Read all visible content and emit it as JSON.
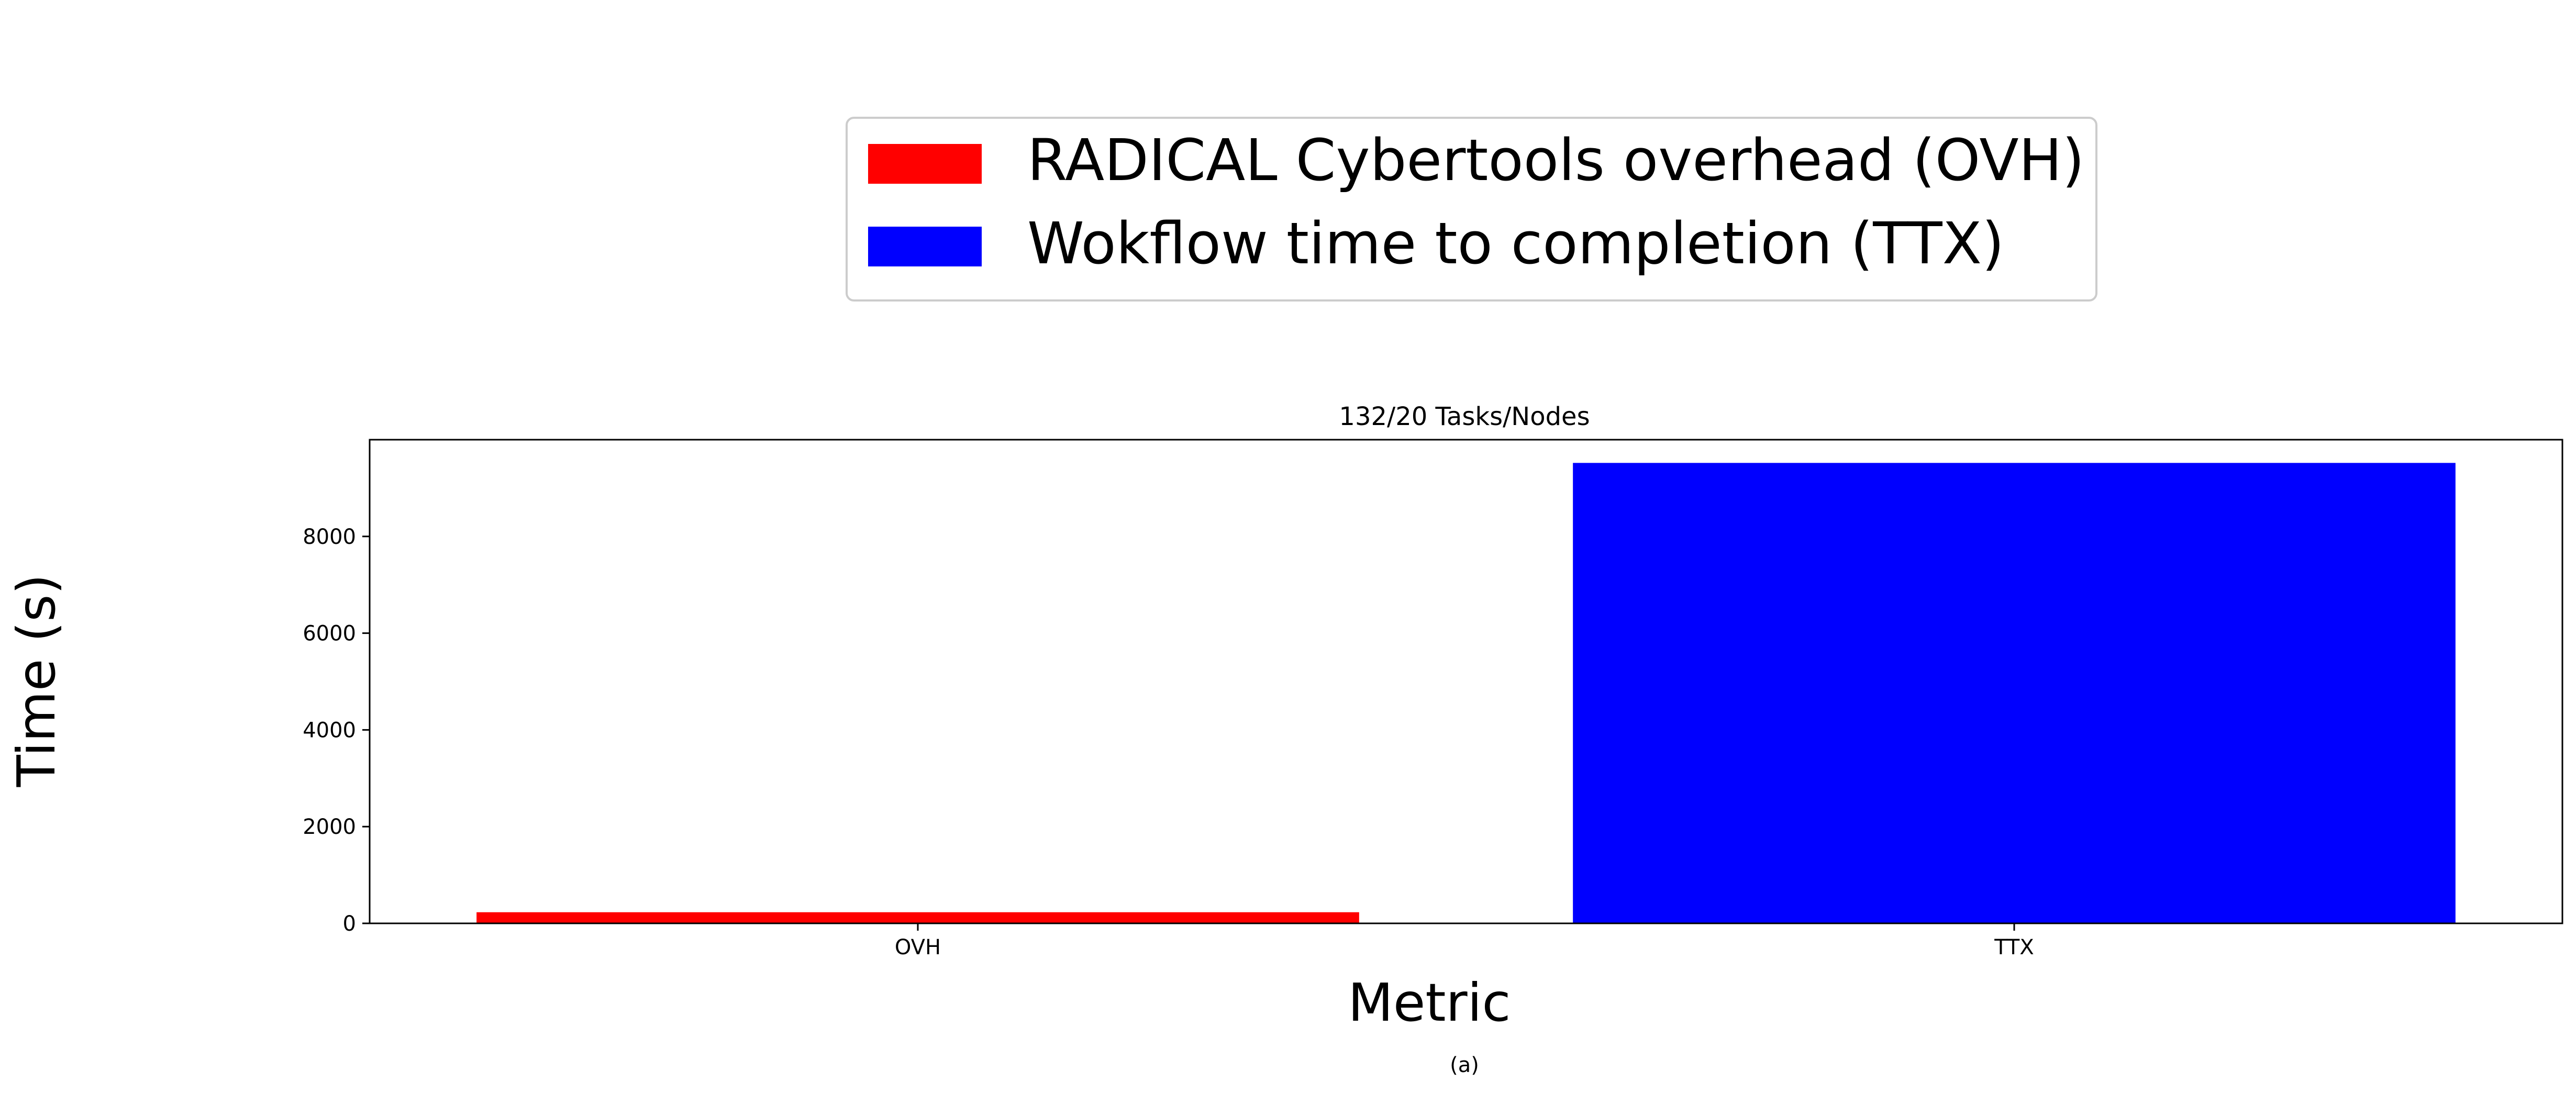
{
  "chart_data": {
    "type": "bar",
    "title": "132/20 Tasks/Nodes",
    "xlabel": "Metric",
    "ylabel": "Time (s)",
    "caption": "(a)",
    "categories": [
      "OVH",
      "TTX"
    ],
    "values": [
      230,
      9520
    ],
    "colors": [
      "#ff0000",
      "#0000ff"
    ],
    "ylim": [
      0,
      10000
    ],
    "yticks": [
      0,
      2000,
      4000,
      6000,
      8000
    ],
    "grid": false,
    "legend_placement": "top-center, above plot",
    "legend": [
      {
        "label": "RADICAL Cybertools overhead (OVH)",
        "color": "#ff0000"
      },
      {
        "label": "Wokflow time to completion (TTX)",
        "color": "#0000ff"
      }
    ]
  }
}
